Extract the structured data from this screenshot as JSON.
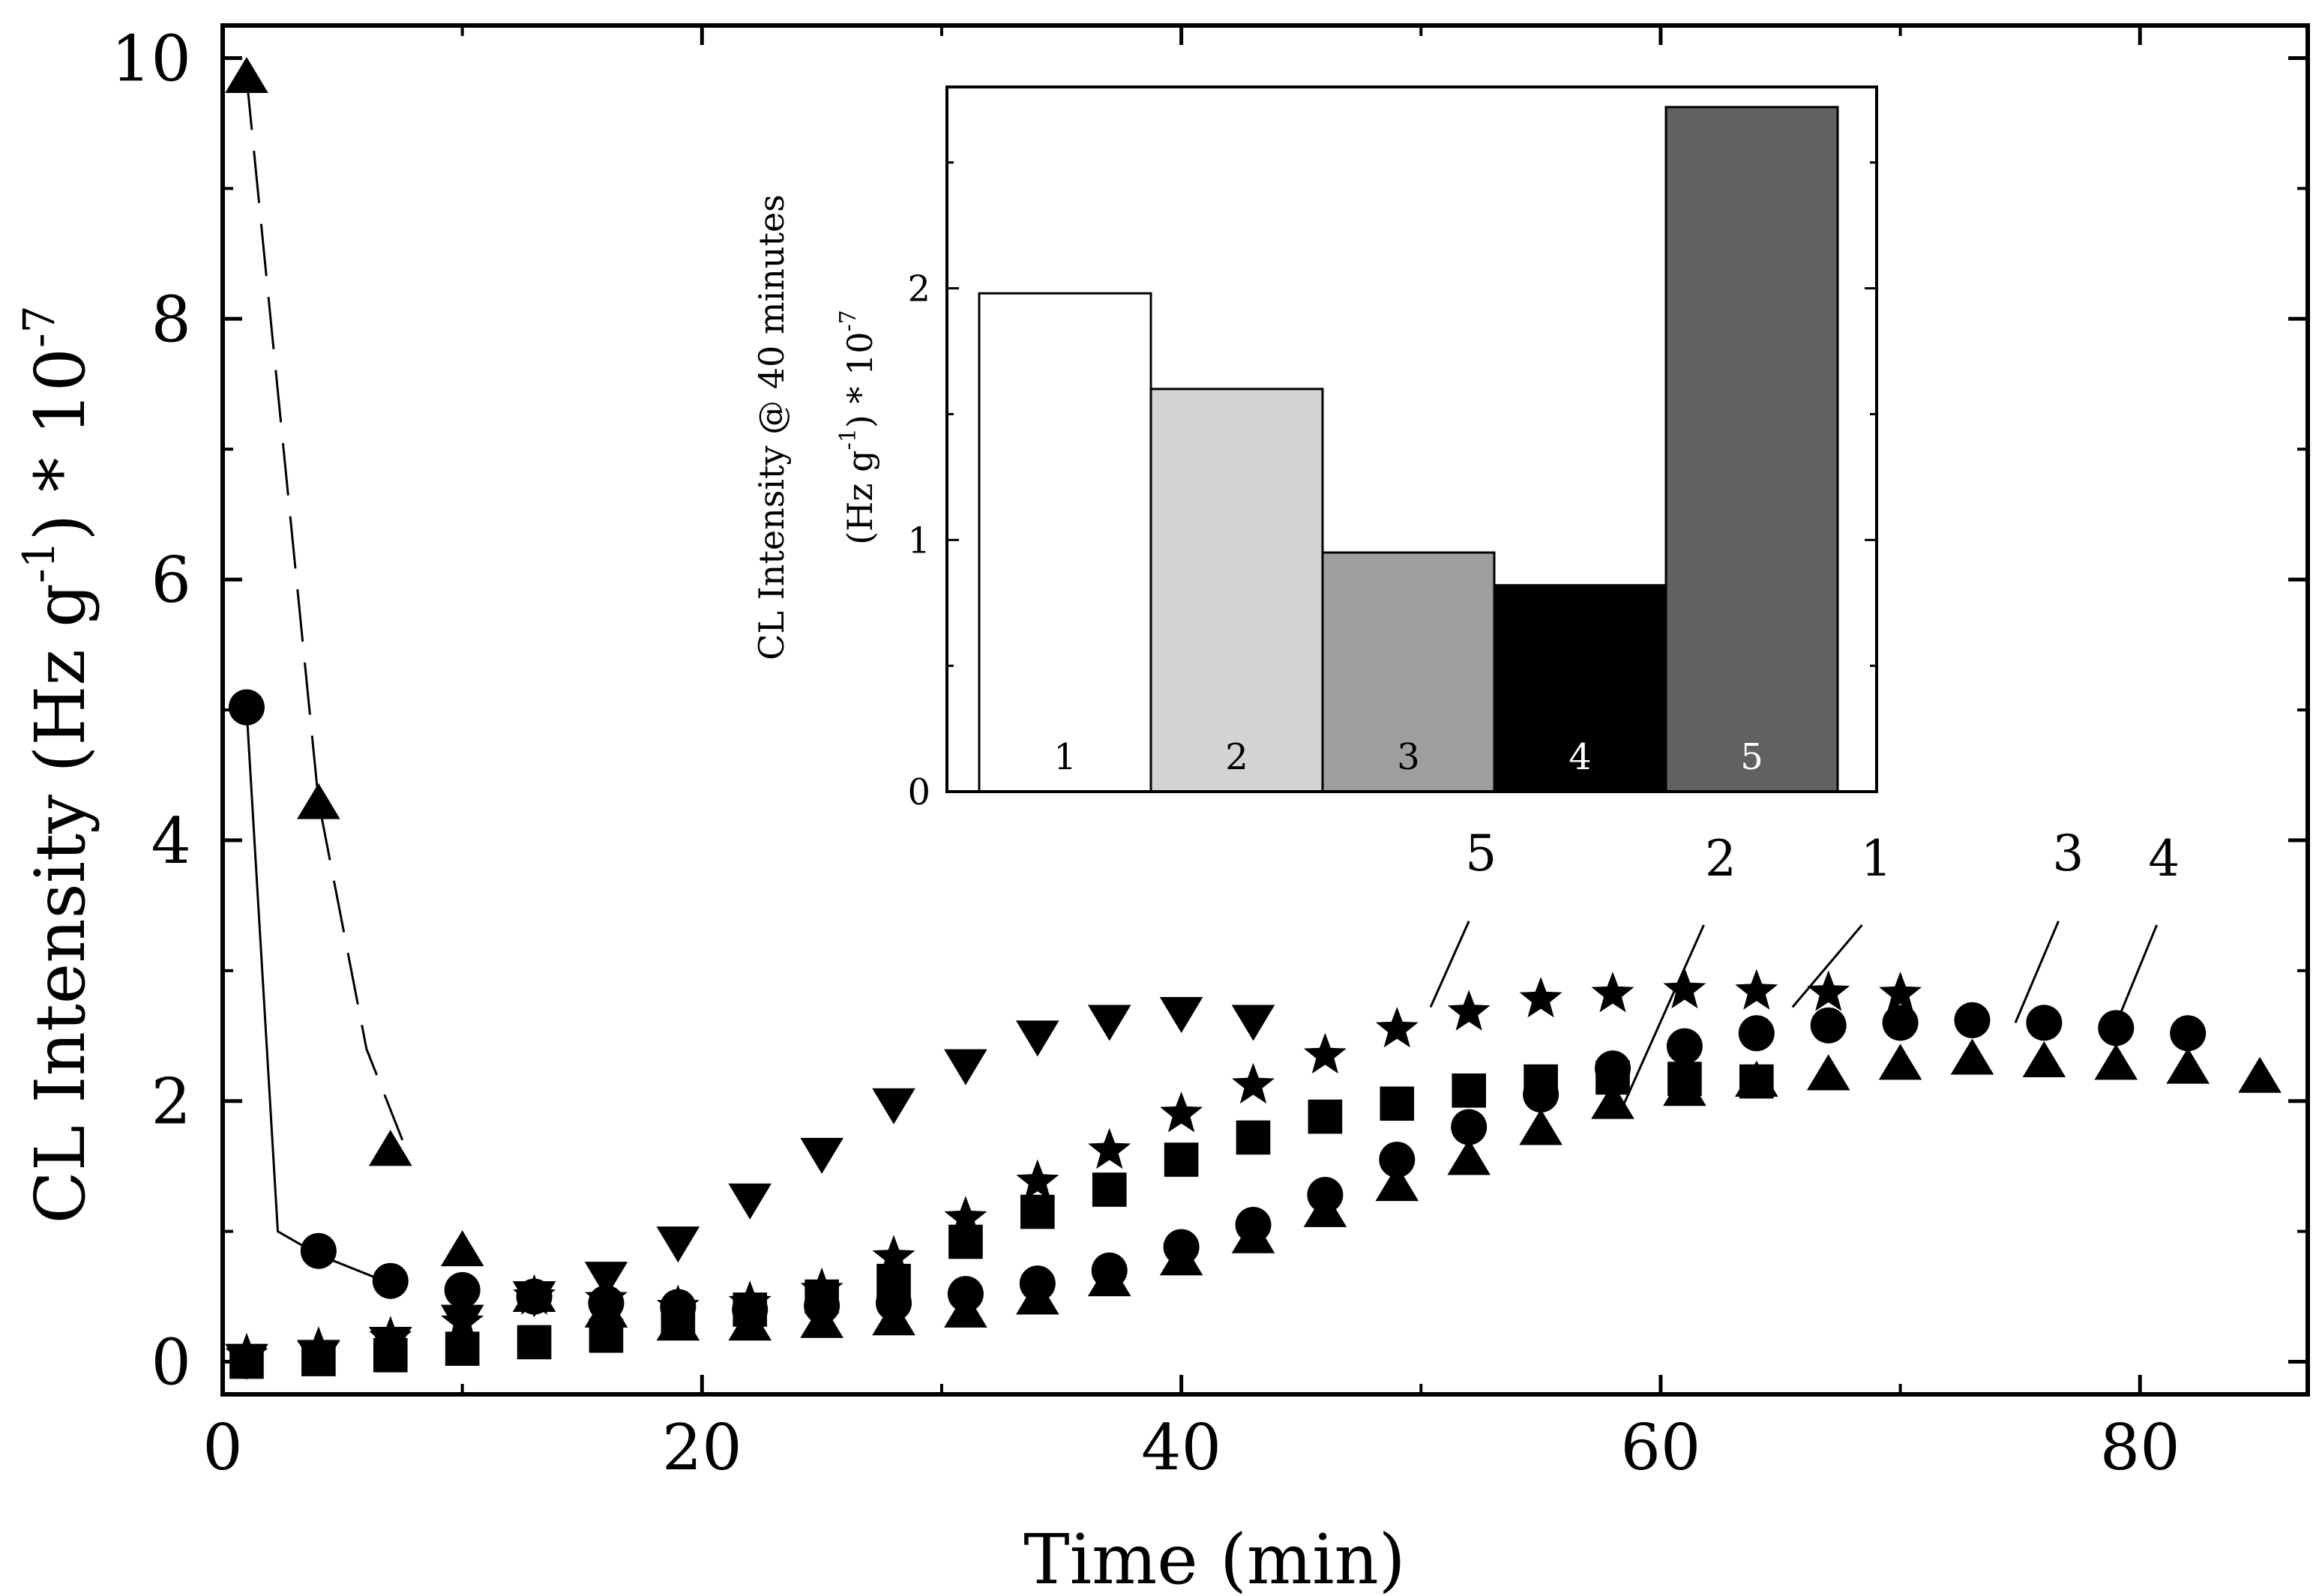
{
  "chart_data": [
    {
      "type": "scatter",
      "title": "",
      "xlabel": "Time (min)",
      "ylabel_main": "CL Intensity (Hz g",
      "ylabel_sup1": "-1",
      "ylabel_mid": ") * 10",
      "ylabel_sup2": "-7",
      "xlim": [
        0,
        87
      ],
      "ylim": [
        -0.25,
        10.25
      ],
      "xticks": [
        "0",
        "20",
        "40",
        "60",
        "80"
      ],
      "xtick_values": [
        0,
        20,
        40,
        60,
        80
      ],
      "yticks": [
        "0",
        "2",
        "4",
        "6",
        "8",
        "10"
      ],
      "ytick_values": [
        0,
        2,
        4,
        6,
        8,
        10
      ],
      "series": [
        {
          "name": "1",
          "marker": "star",
          "x": [
            1,
            4,
            7,
            10,
            13,
            16,
            19,
            22,
            25,
            28,
            31,
            34,
            37,
            40,
            43,
            46,
            49,
            52,
            55,
            58,
            61,
            64,
            67,
            70
          ],
          "y": [
            0.05,
            0.1,
            0.18,
            0.3,
            0.5,
            0.48,
            0.42,
            0.45,
            0.55,
            0.8,
            1.1,
            1.38,
            1.62,
            1.9,
            2.12,
            2.35,
            2.55,
            2.68,
            2.78,
            2.82,
            2.85,
            2.84,
            2.83,
            2.82
          ]
        },
        {
          "name": "2",
          "marker": "square",
          "x": [
            1,
            4,
            7,
            10,
            13,
            16,
            19,
            22,
            25,
            28,
            31,
            34,
            37,
            40,
            43,
            46,
            49,
            52,
            55,
            58,
            61,
            64
          ],
          "y": [
            0.0,
            0.02,
            0.05,
            0.1,
            0.15,
            0.2,
            0.3,
            0.4,
            0.5,
            0.62,
            0.92,
            1.15,
            1.32,
            1.55,
            1.72,
            1.88,
            1.98,
            2.08,
            2.15,
            2.18,
            2.17,
            2.15
          ]
        },
        {
          "name": "3",
          "marker": "circle",
          "x": [
            1,
            4,
            7,
            10,
            13,
            16,
            19,
            22,
            25,
            28,
            31,
            34,
            37,
            40,
            43,
            46,
            49,
            52,
            55,
            58,
            61,
            64,
            67,
            70,
            73,
            76,
            79,
            82
          ],
          "y": [
            5.02,
            0.85,
            0.62,
            0.55,
            0.5,
            0.45,
            0.42,
            0.4,
            0.43,
            0.45,
            0.52,
            0.6,
            0.7,
            0.88,
            1.05,
            1.28,
            1.55,
            1.8,
            2.05,
            2.25,
            2.42,
            2.52,
            2.58,
            2.6,
            2.62,
            2.6,
            2.56,
            2.52
          ]
        },
        {
          "name": "4",
          "marker": "triangle-up",
          "x": [
            1,
            4,
            7,
            10,
            13,
            16,
            19,
            22,
            25,
            28,
            31,
            34,
            37,
            40,
            43,
            46,
            49,
            52,
            55,
            58,
            61,
            64,
            67,
            70,
            73,
            76,
            79,
            82,
            85
          ],
          "y": [
            9.85,
            4.28,
            1.62,
            0.85,
            0.5,
            0.38,
            0.28,
            0.28,
            0.3,
            0.32,
            0.38,
            0.48,
            0.62,
            0.78,
            0.95,
            1.15,
            1.35,
            1.55,
            1.78,
            1.98,
            2.08,
            2.15,
            2.2,
            2.28,
            2.32,
            2.3,
            2.28,
            2.25,
            2.18
          ]
        },
        {
          "name": "5",
          "marker": "triangle-down",
          "x": [
            1,
            4,
            7,
            10,
            13,
            16,
            19,
            22,
            25,
            28,
            31,
            34,
            37,
            40,
            43
          ],
          "y": [
            0.02,
            0.05,
            0.15,
            0.32,
            0.5,
            0.65,
            0.92,
            1.25,
            1.6,
            1.98,
            2.28,
            2.5,
            2.62,
            2.68,
            2.62
          ]
        }
      ],
      "fit_lines": [
        {
          "name": "circle-fit",
          "style": "solid",
          "x": [
            1,
            2.3,
            4,
            7
          ],
          "y": [
            5.0,
            1.0,
            0.82,
            0.6
          ]
        },
        {
          "name": "triangle-fit",
          "style": "dashed",
          "x": [
            1,
            4,
            6,
            7.5
          ],
          "y": [
            9.85,
            4.3,
            2.4,
            1.7
          ]
        }
      ],
      "annotations": [
        {
          "label": "5",
          "text_x": 52.5,
          "text_y": 3.77,
          "line_from": [
            52.0,
            3.38
          ],
          "line_to": [
            50.4,
            2.72
          ]
        },
        {
          "label": "2",
          "text_x": 62.5,
          "text_y": 3.73,
          "line_from": [
            61.8,
            3.35
          ],
          "line_to": [
            58.4,
            1.95
          ]
        },
        {
          "label": "1",
          "text_x": 69.0,
          "text_y": 3.73,
          "line_from": [
            68.4,
            3.35
          ],
          "line_to": [
            65.5,
            2.72
          ]
        },
        {
          "label": "3",
          "text_x": 77.0,
          "text_y": 3.77,
          "line_from": [
            76.6,
            3.38
          ],
          "line_to": [
            74.8,
            2.6
          ]
        },
        {
          "label": "4",
          "text_x": 81.0,
          "text_y": 3.73,
          "line_from": [
            80.7,
            3.35
          ],
          "line_to": [
            78.8,
            2.5
          ]
        }
      ]
    },
    {
      "type": "bar",
      "title": "inset",
      "ylabel_line1": "CL Intensity @ 40 minutes",
      "ylabel_line2_main": "(Hz g",
      "ylabel_line2_sup1": "-1",
      "ylabel_line2_mid": ") * 10",
      "ylabel_line2_sup2": "-7",
      "categories": [
        "1",
        "2",
        "3",
        "4",
        "5"
      ],
      "values": [
        1.98,
        1.6,
        0.95,
        0.82,
        2.72
      ],
      "colors": [
        "#ffffff",
        "#d3d3d3",
        "#9e9e9e",
        "#000000",
        "#616161"
      ],
      "label_colors": [
        "#000000",
        "#000000",
        "#000000",
        "#ffffff",
        "#ffffff"
      ],
      "ylim": [
        0,
        2.8
      ],
      "yticks": [
        "0",
        "1",
        "2"
      ],
      "ytick_values": [
        0,
        1,
        2
      ]
    }
  ]
}
